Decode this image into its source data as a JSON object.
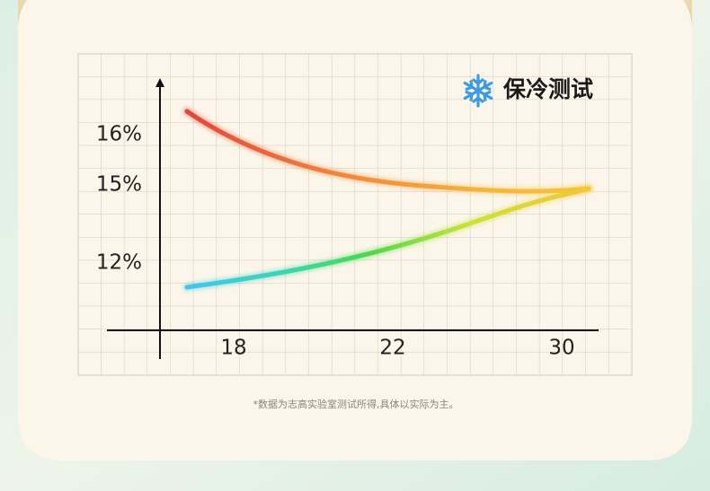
{
  "title": "保冷测试",
  "y_labels": [
    "16%",
    "15%",
    "12%"
  ],
  "x_labels": [
    "18",
    "22",
    "30"
  ],
  "footnote": "*数据为志高实验室测试所得,具体以实际为主。"
}
